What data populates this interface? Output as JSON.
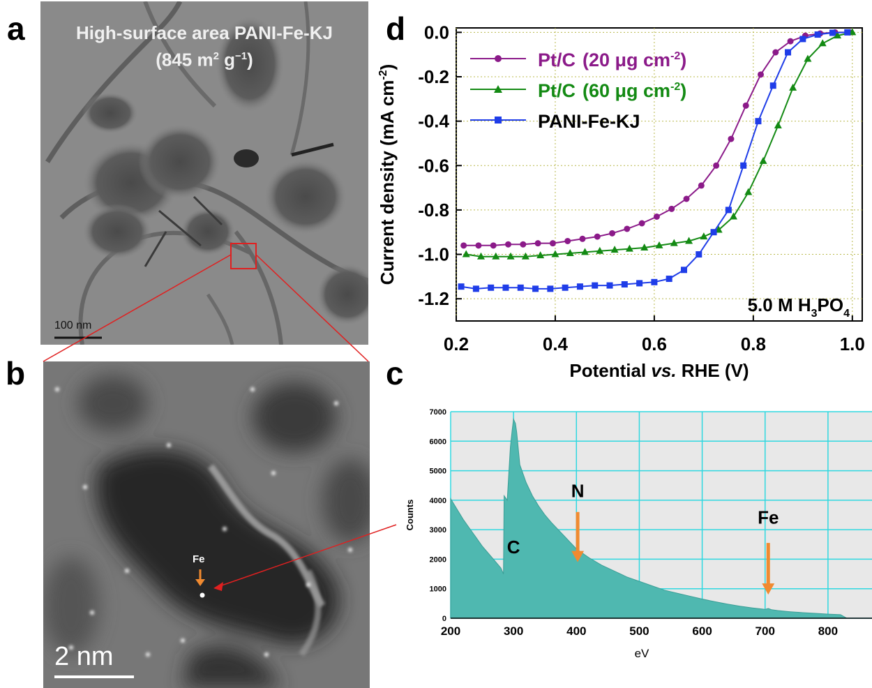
{
  "panels": {
    "a": {
      "label": "a",
      "title_line1": "High-surface area PANI-Fe-KJ",
      "title_line2_pre": "(845 m",
      "title_sup1": "2",
      "title_mid": " g",
      "title_sup2": "−1",
      "title_post": ")",
      "scalebar": "100 nm"
    },
    "b": {
      "label": "b",
      "atom_label": "Fe",
      "scalebar": "2 nm"
    },
    "c": {
      "label": "c"
    },
    "d": {
      "label": "d"
    }
  },
  "colors": {
    "pt20": "#8b1a89",
    "pt60": "#138a13",
    "pani": "#1f3de8",
    "eels_fill": "#4fb8b0",
    "eels_grid": "#2fd8e0",
    "arrow": "#f08a30",
    "zoom_box": "#e02020"
  },
  "chart_data": [
    {
      "id": "d",
      "type": "line",
      "xlabel_pre": "Potential ",
      "xlabel_italic": "vs.",
      "xlabel_post": " RHE (V)",
      "ylabel_pre": "Current density (mA cm",
      "ylabel_sup": "-2",
      "ylabel_post": ")",
      "xlim": [
        0.2,
        1.02
      ],
      "ylim": [
        -1.3,
        0.02
      ],
      "xticks": [
        0.2,
        0.4,
        0.6,
        0.8,
        1.0
      ],
      "xtick_labels": [
        "0.2",
        "0.4",
        "0.6",
        "0.8",
        "1.0"
      ],
      "yticks": [
        0.0,
        -0.2,
        -0.4,
        -0.6,
        -0.8,
        -1.0,
        -1.2
      ],
      "ytick_labels": [
        "0.0",
        "-0.2",
        "-0.4",
        "-0.6",
        "-0.8",
        "-1.0",
        "-1.2"
      ],
      "grid": true,
      "legend_position": "top-left",
      "annotation_pre": "5.0 M H",
      "annotation_sub1": "3",
      "annotation_mid": "PO",
      "annotation_sub2": "4",
      "series": [
        {
          "name_main": "Pt/C",
          "name_detail": "(20 μg cm",
          "name_sup": "-2",
          "name_close": ")",
          "marker": "circle",
          "color": "#8b1a89",
          "x": [
            0.215,
            0.245,
            0.275,
            0.305,
            0.335,
            0.365,
            0.395,
            0.425,
            0.455,
            0.485,
            0.515,
            0.545,
            0.575,
            0.605,
            0.635,
            0.665,
            0.695,
            0.725,
            0.755,
            0.785,
            0.815,
            0.845,
            0.875,
            0.905,
            0.935,
            0.965,
            0.995
          ],
          "y": [
            -0.96,
            -0.96,
            -0.96,
            -0.955,
            -0.955,
            -0.95,
            -0.95,
            -0.94,
            -0.93,
            -0.92,
            -0.905,
            -0.885,
            -0.86,
            -0.83,
            -0.795,
            -0.75,
            -0.69,
            -0.6,
            -0.48,
            -0.33,
            -0.19,
            -0.09,
            -0.04,
            -0.015,
            -0.005,
            0.0,
            0.0
          ]
        },
        {
          "name_main": "Pt/C",
          "name_detail": "(60 μg cm",
          "name_sup": "-2",
          "name_close": ")",
          "marker": "triangle",
          "color": "#138a13",
          "x": [
            0.22,
            0.25,
            0.28,
            0.31,
            0.34,
            0.37,
            0.4,
            0.43,
            0.46,
            0.49,
            0.52,
            0.55,
            0.58,
            0.61,
            0.64,
            0.67,
            0.7,
            0.73,
            0.76,
            0.79,
            0.82,
            0.85,
            0.88,
            0.91,
            0.94,
            0.97,
            1.0
          ],
          "y": [
            -1.0,
            -1.01,
            -1.01,
            -1.01,
            -1.01,
            -1.005,
            -1.0,
            -0.995,
            -0.99,
            -0.985,
            -0.98,
            -0.975,
            -0.97,
            -0.96,
            -0.95,
            -0.94,
            -0.92,
            -0.89,
            -0.83,
            -0.72,
            -0.58,
            -0.42,
            -0.25,
            -0.12,
            -0.05,
            -0.015,
            0.0
          ]
        },
        {
          "name_main": "PANI-Fe-KJ",
          "marker": "square",
          "color": "#1f3de8",
          "x": [
            0.21,
            0.24,
            0.27,
            0.3,
            0.33,
            0.36,
            0.39,
            0.42,
            0.45,
            0.48,
            0.51,
            0.54,
            0.57,
            0.6,
            0.63,
            0.66,
            0.69,
            0.72,
            0.75,
            0.78,
            0.81,
            0.84,
            0.87,
            0.9,
            0.93,
            0.96,
            0.99
          ],
          "y": [
            -1.145,
            -1.155,
            -1.15,
            -1.15,
            -1.15,
            -1.155,
            -1.155,
            -1.15,
            -1.145,
            -1.14,
            -1.14,
            -1.135,
            -1.13,
            -1.125,
            -1.11,
            -1.07,
            -1.0,
            -0.9,
            -0.8,
            -0.6,
            -0.4,
            -0.24,
            -0.09,
            -0.03,
            -0.01,
            -0.002,
            0.0
          ]
        }
      ]
    },
    {
      "id": "c",
      "type": "area",
      "xlabel": "eV",
      "ylabel": "Counts",
      "xlim": [
        200,
        870
      ],
      "ylim": [
        0,
        7000
      ],
      "xticks": [
        200,
        300,
        400,
        500,
        600,
        700,
        800
      ],
      "xtick_labels": [
        "200",
        "300",
        "400",
        "500",
        "600",
        "700",
        "800"
      ],
      "yticks": [
        0,
        1000,
        2000,
        3000,
        4000,
        5000,
        6000,
        7000
      ],
      "ytick_labels": [
        "0",
        "1000",
        "2000",
        "3000",
        "4000",
        "5000",
        "6000",
        "7000"
      ],
      "grid": true,
      "annotations": [
        {
          "text": "C",
          "x": 300,
          "y": 2200,
          "arrow": false
        },
        {
          "text": "N",
          "x": 402,
          "y": 4100,
          "arrow": true,
          "arrow_top": 3600,
          "arrow_bottom": 1900
        },
        {
          "text": "Fe",
          "x": 705,
          "y": 3200,
          "arrow": true,
          "arrow_top": 2550,
          "arrow_bottom": 800
        }
      ],
      "x": [
        200,
        210,
        220,
        230,
        240,
        250,
        260,
        270,
        280,
        284,
        285,
        290,
        295,
        298,
        300,
        303,
        305,
        310,
        320,
        330,
        340,
        350,
        360,
        380,
        400,
        420,
        440,
        460,
        480,
        500,
        520,
        540,
        560,
        580,
        600,
        620,
        640,
        660,
        680,
        700,
        705,
        710,
        720,
        740,
        760,
        780,
        800,
        820,
        830
      ],
      "y": [
        4050,
        3700,
        3350,
        3050,
        2750,
        2450,
        2200,
        1950,
        1700,
        1500,
        4150,
        4000,
        5800,
        6400,
        6750,
        6600,
        6300,
        5200,
        4600,
        4150,
        3800,
        3500,
        3250,
        2800,
        2350,
        2050,
        1800,
        1600,
        1400,
        1250,
        1100,
        950,
        850,
        750,
        650,
        560,
        480,
        410,
        350,
        300,
        330,
        290,
        260,
        220,
        190,
        165,
        140,
        120,
        0
      ]
    }
  ]
}
